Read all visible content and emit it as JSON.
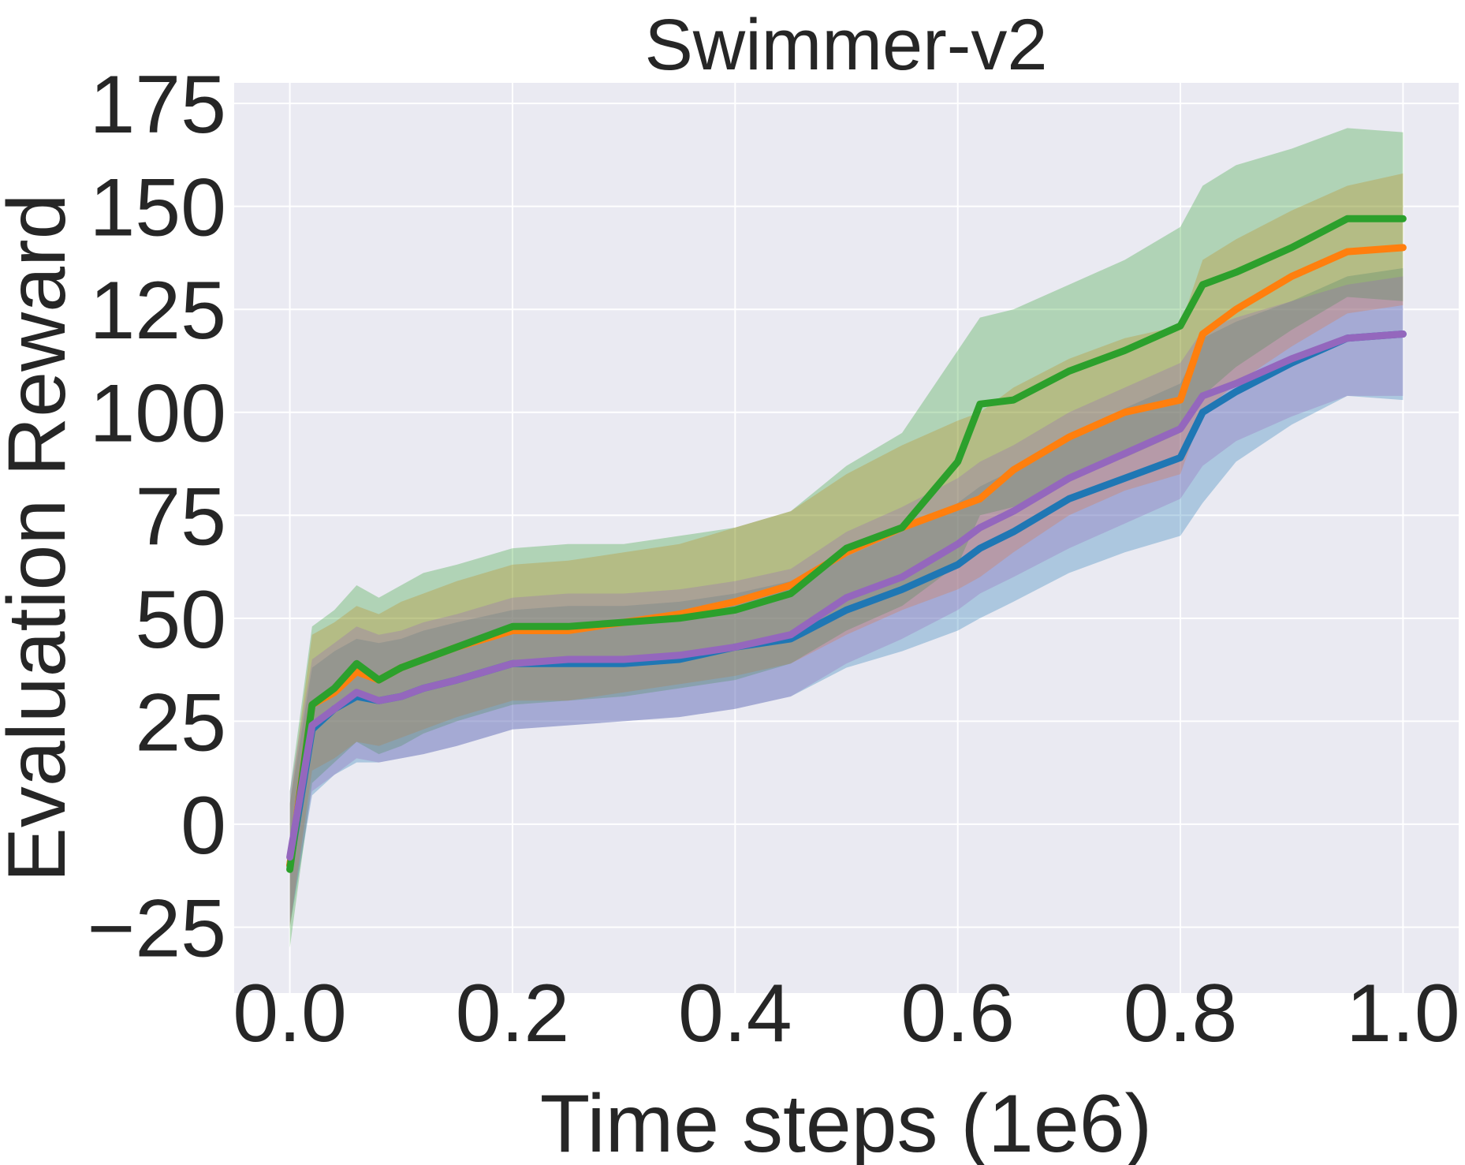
{
  "chart_data": {
    "type": "line",
    "title": "Swimmer-v2",
    "xlabel": "Time steps (1e6)",
    "ylabel": "Evaluation Reward",
    "xlim": [
      -0.05,
      1.05
    ],
    "ylim": [
      -41,
      180
    ],
    "grid": true,
    "background": "#eaeaf2",
    "xticks": [
      0.0,
      0.2,
      0.4,
      0.6,
      0.8,
      1.0
    ],
    "xtick_labels": [
      "0.0",
      "0.2",
      "0.4",
      "0.6",
      "0.8",
      "1.0"
    ],
    "yticks": [
      -25,
      0,
      25,
      50,
      75,
      100,
      125,
      150,
      175
    ],
    "ytick_labels": [
      "−25",
      "0",
      "25",
      "50",
      "75",
      "100",
      "125",
      "150",
      "175"
    ],
    "x": [
      0.0,
      0.02,
      0.04,
      0.06,
      0.08,
      0.1,
      0.12,
      0.15,
      0.2,
      0.25,
      0.3,
      0.35,
      0.4,
      0.45,
      0.5,
      0.55,
      0.6,
      0.62,
      0.65,
      0.7,
      0.75,
      0.8,
      0.82,
      0.85,
      0.9,
      0.95,
      1.0
    ],
    "series": [
      {
        "color": "#1f77b4",
        "values": [
          -10,
          23,
          28,
          31,
          30,
          31,
          33,
          35,
          39,
          39,
          39,
          40,
          43,
          45,
          52,
          57,
          63,
          67,
          71,
          79,
          84,
          89,
          100,
          105,
          112,
          118,
          119
        ],
        "lower": [
          -25,
          7,
          12,
          15,
          15,
          16,
          17,
          19,
          23,
          24,
          25,
          26,
          28,
          31,
          38,
          42,
          47,
          50,
          54,
          61,
          66,
          70,
          78,
          88,
          97,
          104,
          103
        ],
        "upper": [
          5,
          38,
          42,
          45,
          44,
          45,
          47,
          49,
          52,
          53,
          53,
          54,
          56,
          59,
          65,
          71,
          78,
          82,
          86,
          94,
          101,
          107,
          118,
          122,
          127,
          133,
          135
        ]
      },
      {
        "color": "#ff7f0e",
        "values": [
          -10,
          29,
          32,
          37,
          35,
          38,
          40,
          43,
          47,
          47,
          49,
          51,
          54,
          58,
          66,
          72,
          77,
          79,
          86,
          94,
          100,
          103,
          119,
          125,
          133,
          139,
          140
        ],
        "lower": [
          -25,
          13,
          16,
          20,
          19,
          21,
          23,
          26,
          30,
          30,
          32,
          34,
          36,
          39,
          46,
          52,
          57,
          60,
          66,
          75,
          81,
          85,
          100,
          107,
          116,
          124,
          126
        ],
        "upper": [
          5,
          46,
          49,
          53,
          51,
          54,
          56,
          59,
          63,
          64,
          66,
          68,
          72,
          76,
          85,
          92,
          98,
          100,
          106,
          113,
          118,
          121,
          137,
          142,
          149,
          155,
          158
        ]
      },
      {
        "color": "#2ca02c",
        "values": [
          -11,
          29,
          33,
          39,
          35,
          38,
          40,
          43,
          48,
          48,
          49,
          50,
          52,
          56,
          67,
          72,
          88,
          102,
          103,
          110,
          115,
          121,
          131,
          134,
          140,
          147,
          147
        ],
        "lower": [
          -30,
          10,
          15,
          20,
          17,
          19,
          22,
          25,
          29,
          30,
          31,
          33,
          35,
          39,
          47,
          53,
          63,
          75,
          77,
          84,
          89,
          95,
          104,
          111,
          120,
          128,
          127
        ],
        "upper": [
          8,
          48,
          52,
          58,
          55,
          58,
          61,
          63,
          67,
          68,
          68,
          70,
          72,
          76,
          87,
          95,
          115,
          123,
          125,
          131,
          137,
          145,
          155,
          160,
          164,
          169,
          168
        ]
      },
      {
        "color": "#9467bd",
        "values": [
          -8,
          24,
          28,
          32,
          30,
          31,
          33,
          35,
          39,
          40,
          40,
          41,
          43,
          46,
          55,
          60,
          68,
          72,
          76,
          84,
          90,
          96,
          104,
          107,
          113,
          118,
          119
        ],
        "lower": [
          -24,
          8,
          12,
          16,
          15,
          16,
          17,
          19,
          23,
          24,
          25,
          26,
          28,
          31,
          39,
          45,
          52,
          56,
          60,
          67,
          73,
          79,
          87,
          93,
          99,
          104,
          104
        ],
        "upper": [
          8,
          40,
          44,
          48,
          46,
          47,
          49,
          51,
          55,
          56,
          56,
          57,
          59,
          62,
          71,
          77,
          84,
          88,
          92,
          100,
          106,
          112,
          120,
          123,
          127,
          131,
          133
        ]
      }
    ]
  }
}
